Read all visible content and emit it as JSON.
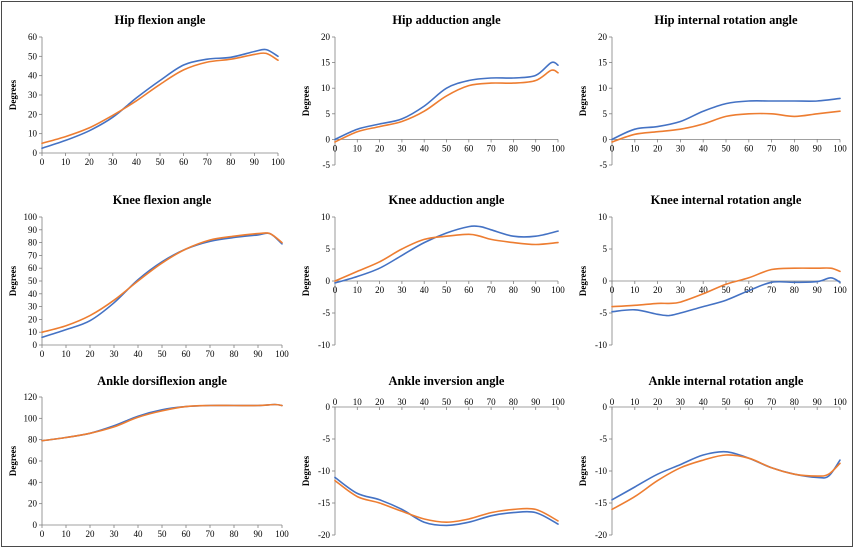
{
  "colors": {
    "series_blue": "#4472C4",
    "series_orange": "#ED7D31",
    "axis": "#808080"
  },
  "chart_data": [
    {
      "type": "line",
      "title": "Hip flexion angle",
      "ylabel": "Degrees",
      "xlim": [
        0,
        100
      ],
      "ylim": [
        0,
        60
      ],
      "xticks": [
        0,
        10,
        20,
        30,
        40,
        50,
        60,
        70,
        80,
        90,
        100
      ],
      "yticks": [
        0,
        10,
        20,
        30,
        40,
        50,
        60
      ],
      "x": [
        0,
        10,
        20,
        30,
        40,
        50,
        60,
        70,
        80,
        90,
        95,
        100
      ],
      "series": [
        {
          "color": "#4472C4",
          "values": [
            2.5,
            6.5,
            11.5,
            18.5,
            28.5,
            37.5,
            45.5,
            48.5,
            49.5,
            52.5,
            53.5,
            50
          ]
        },
        {
          "color": "#ED7D31",
          "values": [
            5,
            8.5,
            13,
            19.5,
            27,
            35.5,
            43,
            47,
            48.5,
            51,
            51.5,
            48
          ]
        }
      ]
    },
    {
      "type": "line",
      "title": "Hip adduction angle",
      "ylabel": "Degrees",
      "xlim": [
        0,
        100
      ],
      "ylim": [
        -5,
        20
      ],
      "xticks": [
        0,
        10,
        20,
        30,
        40,
        50,
        60,
        70,
        80,
        90,
        100
      ],
      "yticks": [
        -5,
        0,
        5,
        10,
        15,
        20
      ],
      "x": [
        0,
        10,
        20,
        30,
        40,
        50,
        60,
        70,
        80,
        90,
        97,
        100
      ],
      "series": [
        {
          "color": "#4472C4",
          "values": [
            0,
            2,
            3,
            4,
            6.5,
            10,
            11.5,
            12,
            12,
            12.5,
            15,
            14.5
          ]
        },
        {
          "color": "#ED7D31",
          "values": [
            -0.5,
            1.5,
            2.5,
            3.5,
            5.5,
            8.5,
            10.5,
            11,
            11,
            11.5,
            13.5,
            13
          ]
        }
      ]
    },
    {
      "type": "line",
      "title": "Hip internal rotation angle",
      "ylabel": "Degrees",
      "xlim": [
        0,
        100
      ],
      "ylim": [
        -5,
        20
      ],
      "xticks": [
        0,
        10,
        20,
        30,
        40,
        50,
        60,
        70,
        80,
        90,
        100
      ],
      "yticks": [
        -5,
        0,
        5,
        10,
        15,
        20
      ],
      "x": [
        0,
        10,
        20,
        30,
        40,
        50,
        60,
        70,
        80,
        90,
        100
      ],
      "series": [
        {
          "color": "#4472C4",
          "values": [
            0,
            2,
            2.5,
            3.5,
            5.5,
            7,
            7.5,
            7.5,
            7.5,
            7.5,
            8
          ]
        },
        {
          "color": "#ED7D31",
          "values": [
            -0.5,
            1,
            1.5,
            2,
            3,
            4.5,
            5,
            5,
            4.5,
            5,
            5.5
          ]
        }
      ]
    },
    {
      "type": "line",
      "title": "Knee flexion angle",
      "ylabel": "Degrees",
      "xlim": [
        0,
        100
      ],
      "ylim": [
        0,
        100
      ],
      "xticks": [
        0,
        10,
        20,
        30,
        40,
        50,
        60,
        70,
        80,
        90,
        100
      ],
      "yticks": [
        0,
        10,
        20,
        30,
        40,
        50,
        60,
        70,
        80,
        90,
        100
      ],
      "x": [
        0,
        10,
        20,
        30,
        40,
        50,
        60,
        70,
        80,
        90,
        95,
        100
      ],
      "series": [
        {
          "color": "#4472C4",
          "values": [
            6,
            12,
            19,
            33,
            51,
            65,
            75,
            81,
            84,
            86,
            87,
            79
          ]
        },
        {
          "color": "#ED7D31",
          "values": [
            10,
            15,
            23,
            35,
            50,
            64,
            75,
            82,
            85,
            87,
            87,
            80
          ]
        }
      ]
    },
    {
      "type": "line",
      "title": "Knee adduction angle",
      "ylabel": "Degrees",
      "xlim": [
        0,
        100
      ],
      "ylim": [
        -10,
        10
      ],
      "xticks": [
        0,
        10,
        20,
        30,
        40,
        50,
        60,
        70,
        80,
        90,
        100
      ],
      "yticks": [
        -10,
        -5,
        0,
        5,
        10
      ],
      "x": [
        0,
        10,
        20,
        30,
        40,
        50,
        60,
        65,
        70,
        80,
        90,
        100
      ],
      "series": [
        {
          "color": "#4472C4",
          "values": [
            -0.3,
            0.7,
            2,
            4,
            6,
            7.5,
            8.5,
            8.5,
            8,
            7,
            7,
            7.8
          ]
        },
        {
          "color": "#ED7D31",
          "values": [
            0,
            1.5,
            3,
            5,
            6.5,
            7,
            7.3,
            7,
            6.5,
            6,
            5.7,
            6
          ]
        }
      ]
    },
    {
      "type": "line",
      "title": "Knee internal rotation angle",
      "ylabel": "Degrees",
      "xlim": [
        0,
        100
      ],
      "ylim": [
        -10,
        10
      ],
      "xticks": [
        0,
        10,
        20,
        30,
        40,
        50,
        60,
        70,
        80,
        90,
        100
      ],
      "yticks": [
        -10,
        -5,
        0,
        5,
        10
      ],
      "x": [
        0,
        10,
        20,
        25,
        30,
        40,
        50,
        60,
        70,
        80,
        90,
        96,
        100
      ],
      "series": [
        {
          "color": "#4472C4",
          "values": [
            -4.8,
            -4.5,
            -5.2,
            -5.4,
            -5,
            -4,
            -3,
            -1.5,
            -0.2,
            -0.2,
            -0.1,
            0.5,
            -0.2
          ]
        },
        {
          "color": "#ED7D31",
          "values": [
            -4,
            -3.8,
            -3.5,
            -3.5,
            -3.3,
            -2,
            -0.5,
            0.5,
            1.8,
            2,
            2,
            2,
            1.5
          ]
        }
      ]
    },
    {
      "type": "line",
      "title": "Ankle dorsiflexion angle",
      "ylabel": "Degrees",
      "xlim": [
        0,
        100
      ],
      "ylim": [
        0,
        120
      ],
      "xticks": [
        0,
        10,
        20,
        30,
        40,
        50,
        60,
        70,
        80,
        90,
        100
      ],
      "yticks": [
        0,
        20,
        40,
        60,
        80,
        100,
        120
      ],
      "x": [
        0,
        10,
        20,
        30,
        40,
        50,
        60,
        70,
        80,
        90,
        97,
        100
      ],
      "series": [
        {
          "color": "#4472C4",
          "values": [
            79,
            82,
            86,
            93,
            102,
            108,
            111,
            112,
            112,
            112,
            113,
            112
          ]
        },
        {
          "color": "#ED7D31",
          "values": [
            79,
            82,
            86,
            92,
            101,
            107,
            111,
            112,
            112,
            112,
            113,
            112
          ]
        }
      ]
    },
    {
      "type": "line",
      "title": "Ankle inversion angle",
      "ylabel": "Degrees",
      "xlim": [
        0,
        100
      ],
      "ylim": [
        -20,
        0
      ],
      "xticks": [
        0,
        10,
        20,
        30,
        40,
        50,
        60,
        70,
        80,
        90,
        100
      ],
      "yticks": [
        -20,
        -15,
        -10,
        -5,
        0
      ],
      "x": [
        0,
        10,
        20,
        30,
        40,
        50,
        60,
        70,
        80,
        90,
        100
      ],
      "series": [
        {
          "color": "#4472C4",
          "values": [
            -11,
            -13.5,
            -14.5,
            -16,
            -18,
            -18.5,
            -18,
            -17,
            -16.5,
            -16.5,
            -18.3
          ]
        },
        {
          "color": "#ED7D31",
          "values": [
            -11.5,
            -14,
            -15,
            -16.3,
            -17.5,
            -18,
            -17.5,
            -16.5,
            -16,
            -16,
            -17.8
          ]
        }
      ]
    },
    {
      "type": "line",
      "title": "Ankle internal rotation angle",
      "ylabel": "Degrees",
      "xlim": [
        0,
        100
      ],
      "ylim": [
        -20,
        0
      ],
      "xticks": [
        0,
        10,
        20,
        30,
        40,
        50,
        60,
        70,
        80,
        90,
        100
      ],
      "yticks": [
        -20,
        -15,
        -10,
        -5,
        0
      ],
      "x": [
        0,
        10,
        20,
        30,
        40,
        50,
        60,
        70,
        80,
        90,
        95,
        100
      ],
      "series": [
        {
          "color": "#4472C4",
          "values": [
            -14.5,
            -12.5,
            -10.5,
            -9,
            -7.5,
            -7,
            -8,
            -9.5,
            -10.5,
            -11,
            -10.8,
            -8.3
          ]
        },
        {
          "color": "#ED7D31",
          "values": [
            -16,
            -14,
            -11.5,
            -9.5,
            -8.3,
            -7.5,
            -8,
            -9.5,
            -10.5,
            -10.8,
            -10.5,
            -8.8
          ]
        }
      ]
    }
  ]
}
